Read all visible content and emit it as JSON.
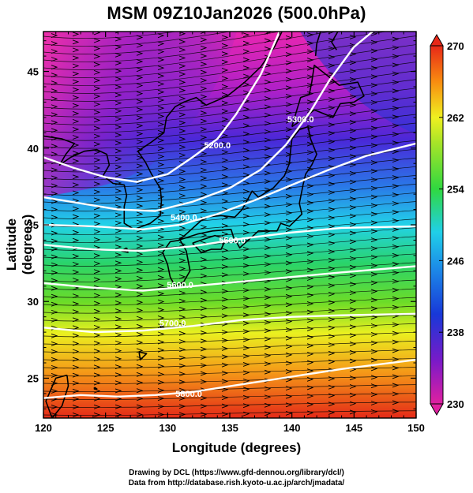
{
  "title": "MSM 09Z10Jan2026 (500.0hPa)",
  "credits": {
    "line1": "Drawing by DCL (https://www.gfd-dennou.org/library/dcl/)",
    "line2": "Data from http://database.rish.kyoto-u.ac.jp/arch/jmadata/"
  },
  "chart_data": {
    "type": "heatmap",
    "xlabel": "Longitude (degrees)",
    "ylabel": "Latitude  (degrees)",
    "xlim": [
      120,
      150
    ],
    "ylim": [
      22.4,
      47.6
    ],
    "x_ticks": [
      "120",
      "125",
      "130",
      "135",
      "140",
      "145",
      "150"
    ],
    "y_ticks": [
      "25",
      "30",
      "35",
      "40",
      "45"
    ],
    "colorbar": {
      "min": 230,
      "max": 270,
      "ticks": [
        "230",
        "238",
        "246",
        "254",
        "262",
        "270"
      ],
      "extend": "both"
    },
    "field": "temperature (shaded) with wind streamlines",
    "contour_labels": [
      {
        "text": "5200.0",
        "lon": 134.0,
        "lat": 40.2
      },
      {
        "text": "5300.0",
        "lon": 140.7,
        "lat": 41.9
      },
      {
        "text": "5400.0",
        "lon": 131.3,
        "lat": 35.5
      },
      {
        "text": "5500.0",
        "lon": 135.2,
        "lat": 34.0
      },
      {
        "text": "5600.0",
        "lon": 131.0,
        "lat": 31.1
      },
      {
        "text": "5700.0",
        "lon": 130.4,
        "lat": 28.6
      },
      {
        "text": "5800.0",
        "lon": 131.7,
        "lat": 24.0
      }
    ],
    "contours": [
      {
        "level": "5200.0",
        "points": [
          [
            120,
            39.4
          ],
          [
            122.5,
            38.7
          ],
          [
            125,
            38.1
          ],
          [
            127.5,
            37.8
          ],
          [
            130,
            38.3
          ],
          [
            132,
            39.4
          ],
          [
            134,
            40.6
          ],
          [
            135.5,
            42.2
          ],
          [
            137.5,
            44.8
          ],
          [
            139,
            47.6
          ]
        ]
      },
      {
        "level": "5300.0",
        "points": [
          [
            120,
            36.8
          ],
          [
            123,
            36.4
          ],
          [
            126,
            36.0
          ],
          [
            129,
            35.9
          ],
          [
            132,
            36.5
          ],
          [
            135,
            37.4
          ],
          [
            137.5,
            38.6
          ],
          [
            139.5,
            40.2
          ],
          [
            141.5,
            42.4
          ],
          [
            143,
            44.4
          ],
          [
            145,
            46.6
          ],
          [
            146.5,
            47.6
          ]
        ]
      },
      {
        "level": "5400.0",
        "points": [
          [
            120,
            35.0
          ],
          [
            124,
            34.9
          ],
          [
            128,
            34.7
          ],
          [
            131,
            35.0
          ],
          [
            134,
            35.7
          ],
          [
            137,
            36.6
          ],
          [
            140,
            37.6
          ],
          [
            143,
            38.6
          ],
          [
            146,
            39.5
          ],
          [
            150,
            40.3
          ]
        ]
      },
      {
        "level": "5500.0",
        "points": [
          [
            120,
            33.7
          ],
          [
            124,
            33.4
          ],
          [
            128,
            33.3
          ],
          [
            132,
            33.6
          ],
          [
            136,
            34.1
          ],
          [
            140,
            34.5
          ],
          [
            144,
            34.8
          ],
          [
            150,
            34.9
          ]
        ]
      },
      {
        "level": "5600.0",
        "points": [
          [
            120,
            31.2
          ],
          [
            124,
            30.9
          ],
          [
            128,
            30.7
          ],
          [
            132,
            31.0
          ],
          [
            136,
            31.3
          ],
          [
            140,
            31.6
          ],
          [
            144,
            31.9
          ],
          [
            150,
            32.3
          ]
        ]
      },
      {
        "level": "5700.0",
        "points": [
          [
            120,
            28.3
          ],
          [
            124,
            28.0
          ],
          [
            128,
            28.1
          ],
          [
            132,
            28.4
          ],
          [
            136,
            28.8
          ],
          [
            140,
            29.0
          ],
          [
            144,
            29.1
          ],
          [
            150,
            29.2
          ]
        ]
      },
      {
        "level": "5800.0",
        "points": [
          [
            120,
            23.7
          ],
          [
            123,
            23.9
          ],
          [
            126,
            23.8
          ],
          [
            129,
            23.9
          ],
          [
            132,
            24.1
          ],
          [
            136,
            24.6
          ],
          [
            140,
            25.1
          ],
          [
            144,
            25.6
          ],
          [
            150,
            26.2
          ]
        ]
      }
    ],
    "grid": false,
    "legend": "colorbar-right"
  },
  "colors": {
    "cold_magenta": "#e020a0",
    "purple": "#7a1ac8",
    "blue": "#1838d8",
    "cyan": "#20d0e8",
    "green": "#30d840",
    "yellow": "#f0f020",
    "orange": "#f88c10",
    "red": "#e82818",
    "contour": "#ffffff",
    "coast": "#000000"
  }
}
